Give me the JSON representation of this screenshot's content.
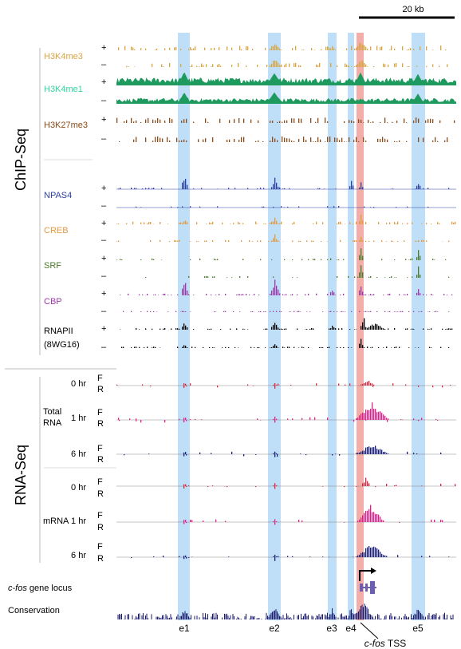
{
  "scale_bar": {
    "label": "20 kb"
  },
  "chip": {
    "section_label": "ChIP-Seq",
    "tracks": [
      {
        "name": "H3K4me3",
        "color": "#d9a441",
        "plus": "+",
        "minus": "–"
      },
      {
        "name": "H3K4me1",
        "color": "#1f9a5e",
        "plus": "+",
        "minus": "–"
      },
      {
        "name": "H3K27me3",
        "color": "#8b4a17",
        "plus": "+",
        "minus": "–"
      },
      {
        "name": "NPAS4",
        "color": "#2e3fa0",
        "plus": "+",
        "minus": "–"
      },
      {
        "name": "CREB",
        "color": "#e39b43",
        "plus": "+",
        "minus": "–"
      },
      {
        "name": "SRF",
        "color": "#4a7a2a",
        "plus": "+",
        "minus": "–"
      },
      {
        "name": "CBP",
        "color": "#9c3aa8",
        "plus": "+",
        "minus": "–"
      },
      {
        "name": "RNAPII",
        "name2": "(8WG16)",
        "color": "#000000",
        "plus": "+",
        "minus": "–"
      }
    ]
  },
  "rna": {
    "section_label": "RNA-Seq",
    "groups": [
      {
        "label": "Total",
        "label2": "RNA",
        "rows": [
          {
            "time": "0 hr",
            "f": "F",
            "r": "R"
          },
          {
            "time": "1 hr",
            "f": "F",
            "r": "R"
          },
          {
            "time": "6 hr",
            "f": "F",
            "r": "R"
          }
        ]
      },
      {
        "label": "mRNA",
        "rows": [
          {
            "time": "0 hr",
            "f": "F",
            "r": "R"
          },
          {
            "time": "1 hr",
            "f": "F",
            "r": "R"
          },
          {
            "time": "6 hr",
            "f": "F",
            "r": "R"
          }
        ]
      }
    ]
  },
  "gene_locus": {
    "italic": "c-fos",
    "rest": " gene locus"
  },
  "conservation": {
    "label": "Conservation",
    "color": "#1a1a6e"
  },
  "enhancers": [
    "e1",
    "e2",
    "e3",
    "e4",
    "e5"
  ],
  "tss": {
    "italic": "c-fos",
    "rest": " TSS"
  },
  "colors": {
    "enhancer_band": "#a9d3f5",
    "tss_band": "#f19a94",
    "rna_red": "#d7263d",
    "rna_pink": "#e0208a",
    "rna_navy": "#1a1f7a"
  }
}
